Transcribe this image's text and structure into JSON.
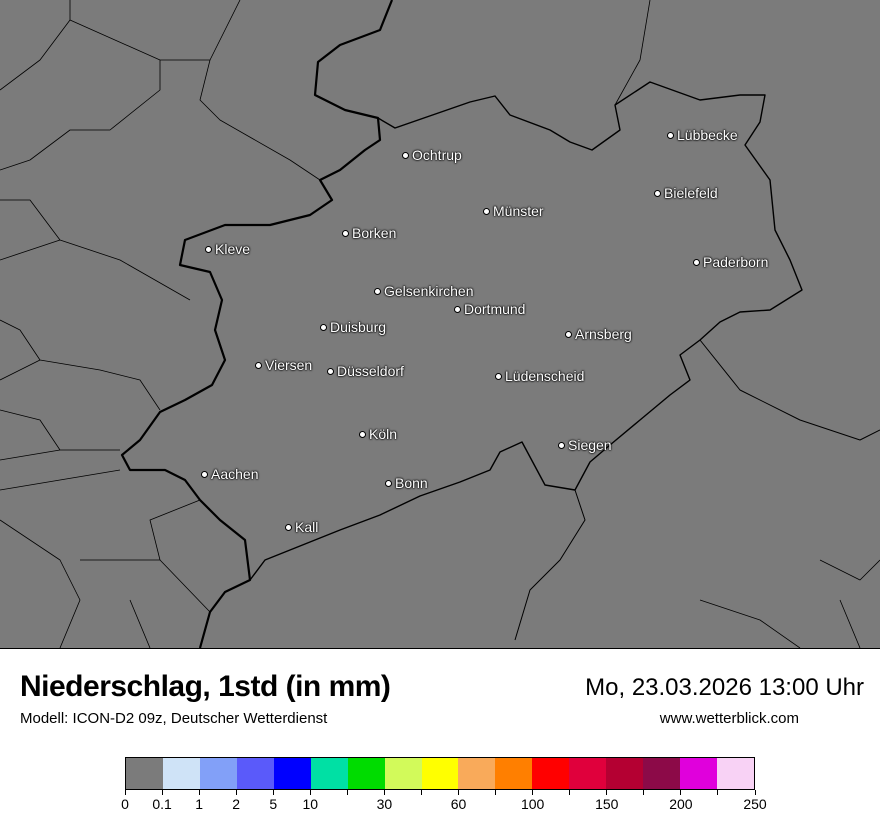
{
  "header": {
    "title": "Niederschlag, 1std (in mm)",
    "subtitle": "Modell: ICON-D2 09z, Deutscher Wetterdienst",
    "datetime": "Mo, 23.03.2026 13:00 Uhr",
    "website": "www.wetterblick.com"
  },
  "map": {
    "background_color": "#7b7b7b",
    "cities": [
      {
        "name": "Lübbecke"
      },
      {
        "name": "Ochtrup"
      },
      {
        "name": "Bielefeld"
      },
      {
        "name": "Münster"
      },
      {
        "name": "Borken"
      },
      {
        "name": "Kleve"
      },
      {
        "name": "Paderborn"
      },
      {
        "name": "Gelsenkirchen"
      },
      {
        "name": "Dortmund"
      },
      {
        "name": "Duisburg"
      },
      {
        "name": "Arnsberg"
      },
      {
        "name": "Viersen"
      },
      {
        "name": "Düsseldorf"
      },
      {
        "name": "Lüdenscheid"
      },
      {
        "name": "Köln"
      },
      {
        "name": "Siegen"
      },
      {
        "name": "Aachen"
      },
      {
        "name": "Bonn"
      },
      {
        "name": "Kall"
      }
    ]
  },
  "legend": {
    "colors": [
      "#7b7b7b",
      "#cfe3f7",
      "#82a0f8",
      "#5a5afa",
      "#0000ff",
      "#00e0a4",
      "#00dc00",
      "#d2fa5a",
      "#ffff00",
      "#f9aa5a",
      "#ff7f00",
      "#ff0000",
      "#e0003c",
      "#b40032",
      "#8c0a48",
      "#e000dc",
      "#f8d2f5"
    ],
    "labels": [
      "0",
      "0.1",
      "1",
      "2",
      "5",
      "10",
      "30",
      "60",
      "100",
      "150",
      "200",
      "250"
    ]
  }
}
